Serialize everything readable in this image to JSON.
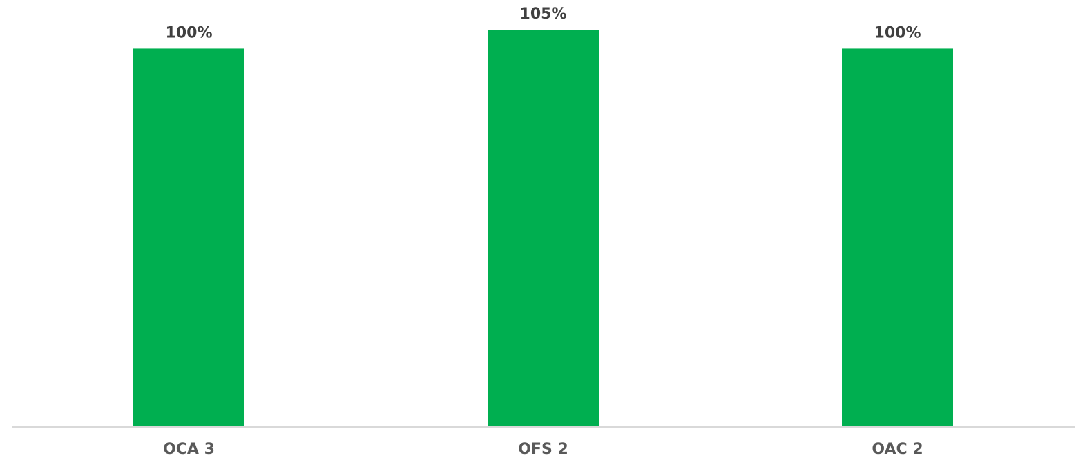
{
  "chart_data": {
    "type": "bar",
    "categories": [
      "OCA 3",
      "OFS 2",
      "OAC 2"
    ],
    "values": [
      100,
      105,
      100
    ],
    "data_labels": [
      "100%",
      "105%",
      "100%"
    ],
    "title": "",
    "xlabel": "",
    "ylabel": "",
    "ylim": [
      0,
      105
    ],
    "grid": false,
    "legend": "none",
    "bar_color": "#00AF50",
    "axis_color": "#D9D9D9"
  }
}
